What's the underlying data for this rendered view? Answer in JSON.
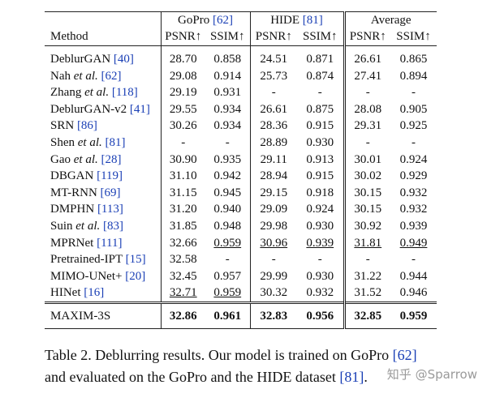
{
  "header": {
    "method": "Method",
    "groups": [
      {
        "name": "GoPro",
        "ref": "[62]"
      },
      {
        "name": "HIDE",
        "ref": "[81]"
      },
      {
        "name": "Average"
      }
    ],
    "metrics": [
      "PSNR↑",
      "SSIM↑",
      "PSNR↑",
      "SSIM↑",
      "PSNR↑",
      "SSIM↑"
    ]
  },
  "table": {
    "rows": [
      {
        "method": "DeblurGAN",
        "ref": "[40]",
        "values": [
          "28.70",
          "0.858",
          "24.51",
          "0.871",
          "26.61",
          "0.865"
        ]
      },
      {
        "method": "Nah",
        "et_al": "et al.",
        "ref": "[62]",
        "values": [
          "29.08",
          "0.914",
          "25.73",
          "0.874",
          "27.41",
          "0.894"
        ]
      },
      {
        "method": "Zhang",
        "et_al": "et al.",
        "ref": "[118]",
        "values": [
          "29.19",
          "0.931",
          "-",
          "-",
          "-",
          "-"
        ]
      },
      {
        "method": "DeblurGAN-v2",
        "ref": "[41]",
        "values": [
          "29.55",
          "0.934",
          "26.61",
          "0.875",
          "28.08",
          "0.905"
        ]
      },
      {
        "method": "SRN",
        "ref": "[86]",
        "values": [
          "30.26",
          "0.934",
          "28.36",
          "0.915",
          "29.31",
          "0.925"
        ]
      },
      {
        "method": "Shen",
        "et_al": "et al.",
        "ref": "[81]",
        "values": [
          "-",
          "-",
          "28.89",
          "0.930",
          "-",
          "-"
        ]
      },
      {
        "method": "Gao",
        "et_al": "et al.",
        "ref": "[28]",
        "values": [
          "30.90",
          "0.935",
          "29.11",
          "0.913",
          "30.01",
          "0.924"
        ]
      },
      {
        "method": "DBGAN",
        "ref": "[119]",
        "values": [
          "31.10",
          "0.942",
          "28.94",
          "0.915",
          "30.02",
          "0.929"
        ]
      },
      {
        "method": "MT-RNN",
        "ref": "[69]",
        "values": [
          "31.15",
          "0.945",
          "29.15",
          "0.918",
          "30.15",
          "0.932"
        ]
      },
      {
        "method": "DMPHN",
        "ref": "[113]",
        "values": [
          "31.20",
          "0.940",
          "29.09",
          "0.924",
          "30.15",
          "0.932"
        ]
      },
      {
        "method": "Suin",
        "et_al": "et al.",
        "ref": "[83]",
        "values": [
          "31.85",
          "0.948",
          "29.98",
          "0.930",
          "30.92",
          "0.939"
        ]
      },
      {
        "method": "MPRNet",
        "ref": "[111]",
        "values": [
          "32.66",
          "0.959",
          "30.96",
          "0.939",
          "31.81",
          "0.949"
        ],
        "underline": [
          1,
          2,
          3,
          4,
          5
        ]
      },
      {
        "method": "Pretrained-IPT",
        "ref": "[15]",
        "values": [
          "32.58",
          "-",
          "-",
          "-",
          "-",
          "-"
        ]
      },
      {
        "method": "MIMO-UNet+",
        "ref": "[20]",
        "values": [
          "32.45",
          "0.957",
          "29.99",
          "0.930",
          "31.22",
          "0.944"
        ]
      },
      {
        "method": "HINet",
        "ref": "[16]",
        "values": [
          "32.71",
          "0.959",
          "30.32",
          "0.932",
          "31.52",
          "0.946"
        ],
        "underline": [
          0,
          1
        ]
      },
      {
        "method": "MAXIM-3S",
        "values": [
          "32.86",
          "0.961",
          "32.83",
          "0.956",
          "32.85",
          "0.959"
        ],
        "bold": true
      }
    ]
  },
  "caption": {
    "lines": [
      [
        {
          "text": "Table 2.  Deblurring results.  Our model is trained on GoPro "
        },
        {
          "text": "[62]",
          "ref": true
        }
      ],
      [
        {
          "text": "and evaluated on the GoPro and the HIDE dataset "
        },
        {
          "text": "[81]",
          "ref": true
        },
        {
          "text": "."
        }
      ]
    ]
  },
  "watermark": "知乎 @Sparrow"
}
